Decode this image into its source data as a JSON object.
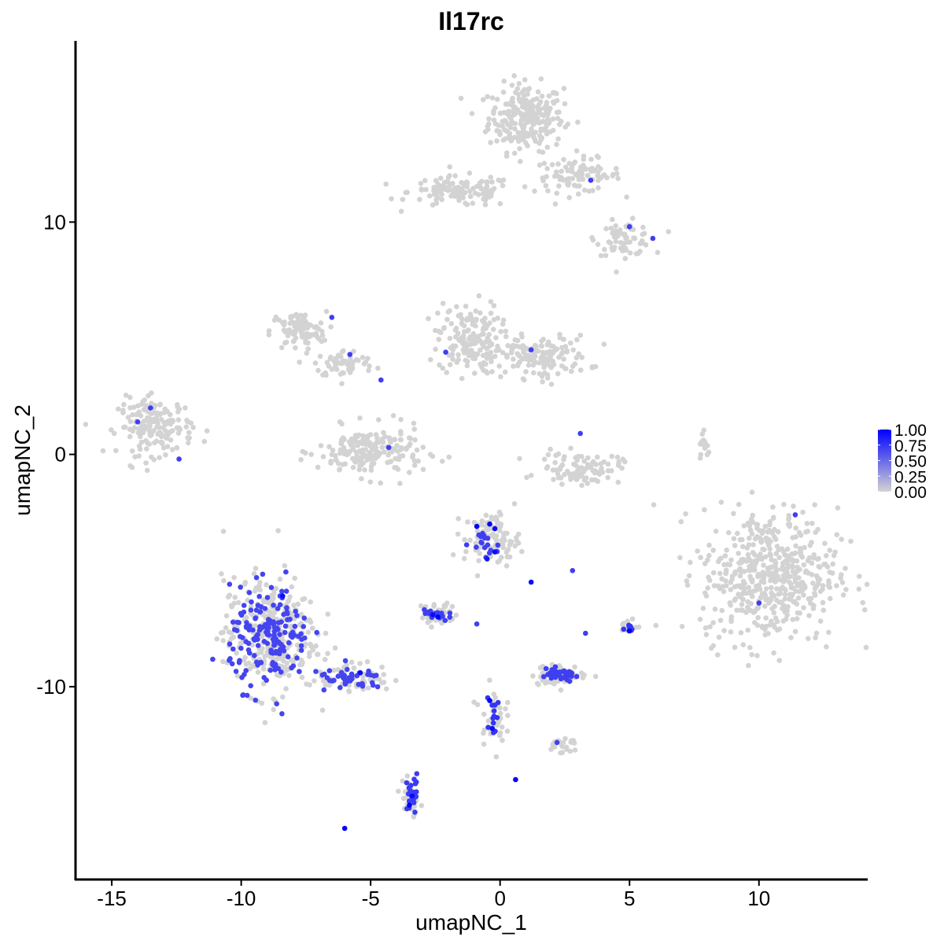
{
  "chart_data": {
    "type": "scatter",
    "title": "Il17rc",
    "xlabel": "umapNC_1",
    "ylabel": "umapNC_2",
    "xlim": [
      -16.4,
      14.2
    ],
    "ylim": [
      -18.3,
      17.8
    ],
    "x_ticks": [
      {
        "value": -15,
        "label": "-15"
      },
      {
        "value": -10,
        "label": "-10"
      },
      {
        "value": -5,
        "label": "-5"
      },
      {
        "value": 0,
        "label": "0"
      },
      {
        "value": 5,
        "label": "5"
      },
      {
        "value": 10,
        "label": "10"
      }
    ],
    "y_ticks": [
      {
        "value": -10,
        "label": "-10"
      },
      {
        "value": 0,
        "label": "0"
      },
      {
        "value": 10,
        "label": "10"
      }
    ],
    "grid": false,
    "legend": {
      "position": "right",
      "color_low": "#d3d3d3",
      "color_high": "#0000ff",
      "ticks": [
        {
          "value": 1.0,
          "label": "1.00"
        },
        {
          "value": 0.75,
          "label": "0.75"
        },
        {
          "value": 0.5,
          "label": "0.50"
        },
        {
          "value": 0.25,
          "label": "0.25"
        },
        {
          "value": 0.0,
          "label": "0.00"
        }
      ]
    },
    "background_clusters": [
      {
        "cx": 1.0,
        "cy": 14.5,
        "rx": 1.2,
        "ry": 1.2,
        "n": 260
      },
      {
        "cx": 3.0,
        "cy": 12.0,
        "rx": 1.4,
        "ry": 0.6,
        "n": 90
      },
      {
        "cx": -1.5,
        "cy": 11.3,
        "rx": 1.7,
        "ry": 0.55,
        "n": 120
      },
      {
        "cx": 4.8,
        "cy": 9.3,
        "rx": 0.9,
        "ry": 0.6,
        "n": 70
      },
      {
        "cx": -7.8,
        "cy": 5.3,
        "rx": 0.9,
        "ry": 0.7,
        "n": 90
      },
      {
        "cx": -6.0,
        "cy": 3.9,
        "rx": 1.0,
        "ry": 0.5,
        "n": 60
      },
      {
        "cx": -1.2,
        "cy": 5.0,
        "rx": 1.0,
        "ry": 1.3,
        "n": 160
      },
      {
        "cx": 1.5,
        "cy": 4.2,
        "rx": 1.6,
        "ry": 0.75,
        "n": 150
      },
      {
        "cx": -13.3,
        "cy": 1.2,
        "rx": 1.2,
        "ry": 1.0,
        "n": 170
      },
      {
        "cx": -5.0,
        "cy": 0.1,
        "rx": 1.7,
        "ry": 0.9,
        "n": 190
      },
      {
        "cx": 3.1,
        "cy": -0.6,
        "rx": 1.3,
        "ry": 0.55,
        "n": 90
      },
      {
        "cx": 10.4,
        "cy": -5.2,
        "rx": 2.2,
        "ry": 2.4,
        "n": 520
      },
      {
        "cx": -0.3,
        "cy": -3.6,
        "rx": 0.9,
        "ry": 0.9,
        "n": 100
      },
      {
        "cx": -8.9,
        "cy": -7.8,
        "rx": 1.5,
        "ry": 2.1,
        "n": 300
      },
      {
        "cx": -5.6,
        "cy": -9.6,
        "rx": 1.2,
        "ry": 0.5,
        "n": 60
      },
      {
        "cx": 2.3,
        "cy": -9.5,
        "rx": 0.9,
        "ry": 0.35,
        "n": 70
      },
      {
        "cx": -2.4,
        "cy": -6.9,
        "rx": 0.55,
        "ry": 0.45,
        "n": 45
      },
      {
        "cx": -0.3,
        "cy": -11.2,
        "rx": 0.4,
        "ry": 1.0,
        "n": 40
      },
      {
        "cx": 2.4,
        "cy": -12.5,
        "rx": 0.5,
        "ry": 0.3,
        "n": 25
      },
      {
        "cx": -3.5,
        "cy": -14.8,
        "rx": 0.3,
        "ry": 0.9,
        "n": 30
      },
      {
        "cx": 5.0,
        "cy": -7.4,
        "rx": 0.25,
        "ry": 0.3,
        "n": 15
      },
      {
        "cx": 7.9,
        "cy": 0.3,
        "rx": 0.2,
        "ry": 0.6,
        "n": 15
      }
    ],
    "highlight_clusters": [
      {
        "cx": -8.9,
        "cy": -7.9,
        "rx": 1.4,
        "ry": 1.9,
        "n": 170,
        "level": 0.68
      },
      {
        "cx": -5.7,
        "cy": -9.7,
        "rx": 1.2,
        "ry": 0.45,
        "n": 40,
        "level": 0.68
      },
      {
        "cx": 2.3,
        "cy": -9.5,
        "rx": 0.75,
        "ry": 0.25,
        "n": 40,
        "level": 0.7
      },
      {
        "cx": -2.5,
        "cy": -6.9,
        "rx": 0.45,
        "ry": 0.3,
        "n": 18,
        "level": 0.7
      },
      {
        "cx": -3.4,
        "cy": -14.6,
        "rx": 0.25,
        "ry": 0.8,
        "n": 22,
        "level": 0.72
      },
      {
        "cx": -0.3,
        "cy": -11.3,
        "rx": 0.3,
        "ry": 0.7,
        "n": 12,
        "level": 0.75
      },
      {
        "cx": -0.6,
        "cy": -3.8,
        "rx": 0.5,
        "ry": 0.55,
        "n": 16,
        "level": 0.7
      },
      {
        "cx": 5.0,
        "cy": -7.4,
        "rx": 0.15,
        "ry": 0.2,
        "n": 8,
        "level": 0.75
      }
    ],
    "highlight_points": [
      {
        "x": -0.9,
        "y": -3.1,
        "v": 1.0
      },
      {
        "x": -0.4,
        "y": -3.0,
        "v": 1.0
      },
      {
        "x": -0.2,
        "y": -3.2,
        "v": 0.95
      },
      {
        "x": -0.2,
        "y": -4.2,
        "v": 0.95
      },
      {
        "x": -0.5,
        "y": -4.5,
        "v": 0.9
      },
      {
        "x": 1.2,
        "y": -5.5,
        "v": 0.95
      },
      {
        "x": -2.4,
        "y": -7.0,
        "v": 1.0
      },
      {
        "x": -2.6,
        "y": -6.9,
        "v": 0.95
      },
      {
        "x": -8.4,
        "y": -6.1,
        "v": 0.95
      },
      {
        "x": -5.4,
        "y": -9.4,
        "v": 0.95
      },
      {
        "x": -0.4,
        "y": -10.6,
        "v": 1.0
      },
      {
        "x": -0.3,
        "y": -11.8,
        "v": 0.95
      },
      {
        "x": 0.6,
        "y": -14.0,
        "v": 1.0
      },
      {
        "x": -3.5,
        "y": -15.1,
        "v": 1.0
      },
      {
        "x": -3.4,
        "y": -14.7,
        "v": 0.95
      },
      {
        "x": -6.0,
        "y": -16.1,
        "v": 1.0
      },
      {
        "x": 5.0,
        "y": -7.6,
        "v": 1.0
      },
      {
        "x": -0.6,
        "y": -3.6,
        "v": 0.7
      },
      {
        "x": 2.8,
        "y": -5.0,
        "v": 0.7
      },
      {
        "x": 2.2,
        "y": -12.4,
        "v": 0.7
      },
      {
        "x": -0.9,
        "y": -7.3,
        "v": 0.7
      },
      {
        "x": 3.3,
        "y": -7.7,
        "v": 0.7
      },
      {
        "x": 3.5,
        "y": 11.8,
        "v": 0.7
      },
      {
        "x": 5.0,
        "y": 9.8,
        "v": 0.7
      },
      {
        "x": 5.9,
        "y": 9.3,
        "v": 0.7
      },
      {
        "x": 1.2,
        "y": 4.5,
        "v": 0.7
      },
      {
        "x": -2.1,
        "y": 4.4,
        "v": 0.7
      },
      {
        "x": -6.5,
        "y": 5.9,
        "v": 0.7
      },
      {
        "x": -5.8,
        "y": 4.3,
        "v": 0.7
      },
      {
        "x": -4.6,
        "y": 3.2,
        "v": 0.7
      },
      {
        "x": -4.3,
        "y": 0.3,
        "v": 0.7
      },
      {
        "x": 3.1,
        "y": 0.9,
        "v": 0.7
      },
      {
        "x": -14.0,
        "y": 1.4,
        "v": 0.7
      },
      {
        "x": -13.5,
        "y": 2.0,
        "v": 0.7
      },
      {
        "x": -12.4,
        "y": -0.2,
        "v": 0.7
      },
      {
        "x": 11.4,
        "y": -2.6,
        "v": 0.7
      },
      {
        "x": 10.0,
        "y": -6.4,
        "v": 0.7
      }
    ]
  }
}
